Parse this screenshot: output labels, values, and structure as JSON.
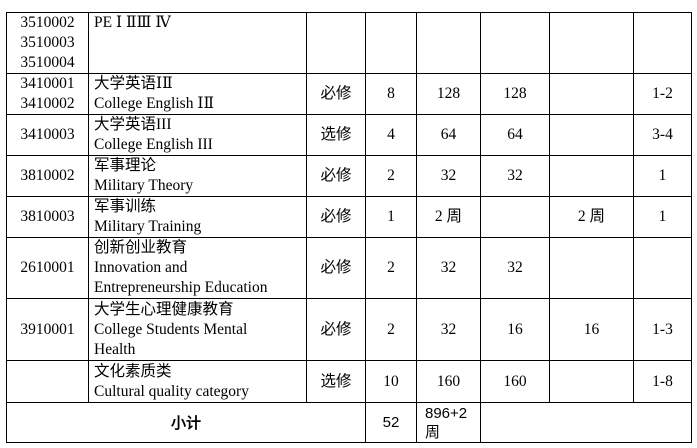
{
  "rows": [
    {
      "codes": [
        "3510002",
        "3510003",
        "3510004"
      ],
      "name": [
        "PE Ⅰ ⅡⅢ Ⅳ"
      ],
      "type": "",
      "credits": "",
      "hours": "",
      "theory": "",
      "practice": "",
      "semester": ""
    },
    {
      "codes": [
        "3410001",
        "3410002"
      ],
      "name": [
        "大学英语ⅠⅡ",
        "College English ⅠⅡ"
      ],
      "type": "必修",
      "credits": "8",
      "hours": "128",
      "theory": "128",
      "practice": "",
      "semester": "1-2"
    },
    {
      "codes": [
        "3410003"
      ],
      "name": [
        "大学英语III",
        "College English III"
      ],
      "type": "选修",
      "credits": "4",
      "hours": "64",
      "theory": "64",
      "practice": "",
      "semester": "3-4"
    },
    {
      "codes": [
        "3810002"
      ],
      "name": [
        "军事理论",
        "Military Theory"
      ],
      "type": "必修",
      "credits": "2",
      "hours": "32",
      "theory": "32",
      "practice": "",
      "semester": "1"
    },
    {
      "codes": [
        "3810003"
      ],
      "name": [
        "军事训练",
        "Military Training"
      ],
      "type": "必修",
      "credits": "1",
      "hours": "2 周",
      "theory": "",
      "practice": "2 周",
      "semester": "1"
    },
    {
      "codes": [
        "2610001"
      ],
      "name": [
        "创新创业教育",
        "Innovation and",
        "Entrepreneurship Education"
      ],
      "type": "必修",
      "credits": "2",
      "hours": "32",
      "theory": "32",
      "practice": "",
      "semester": ""
    },
    {
      "codes": [
        "3910001"
      ],
      "name": [
        "大学生心理健康教育",
        "College Students Mental",
        "Health"
      ],
      "type": "必修",
      "credits": "2",
      "hours": "32",
      "theory": "16",
      "practice": "16",
      "semester": "1-3"
    },
    {
      "codes": [],
      "name": [
        "文化素质类",
        "Cultural quality category"
      ],
      "type": "选修",
      "credits": "10",
      "hours": "160",
      "theory": "160",
      "practice": "",
      "semester": "1-8"
    }
  ],
  "total": {
    "label": "小计",
    "credits": "52",
    "hours": [
      "896+2",
      "周"
    ]
  }
}
